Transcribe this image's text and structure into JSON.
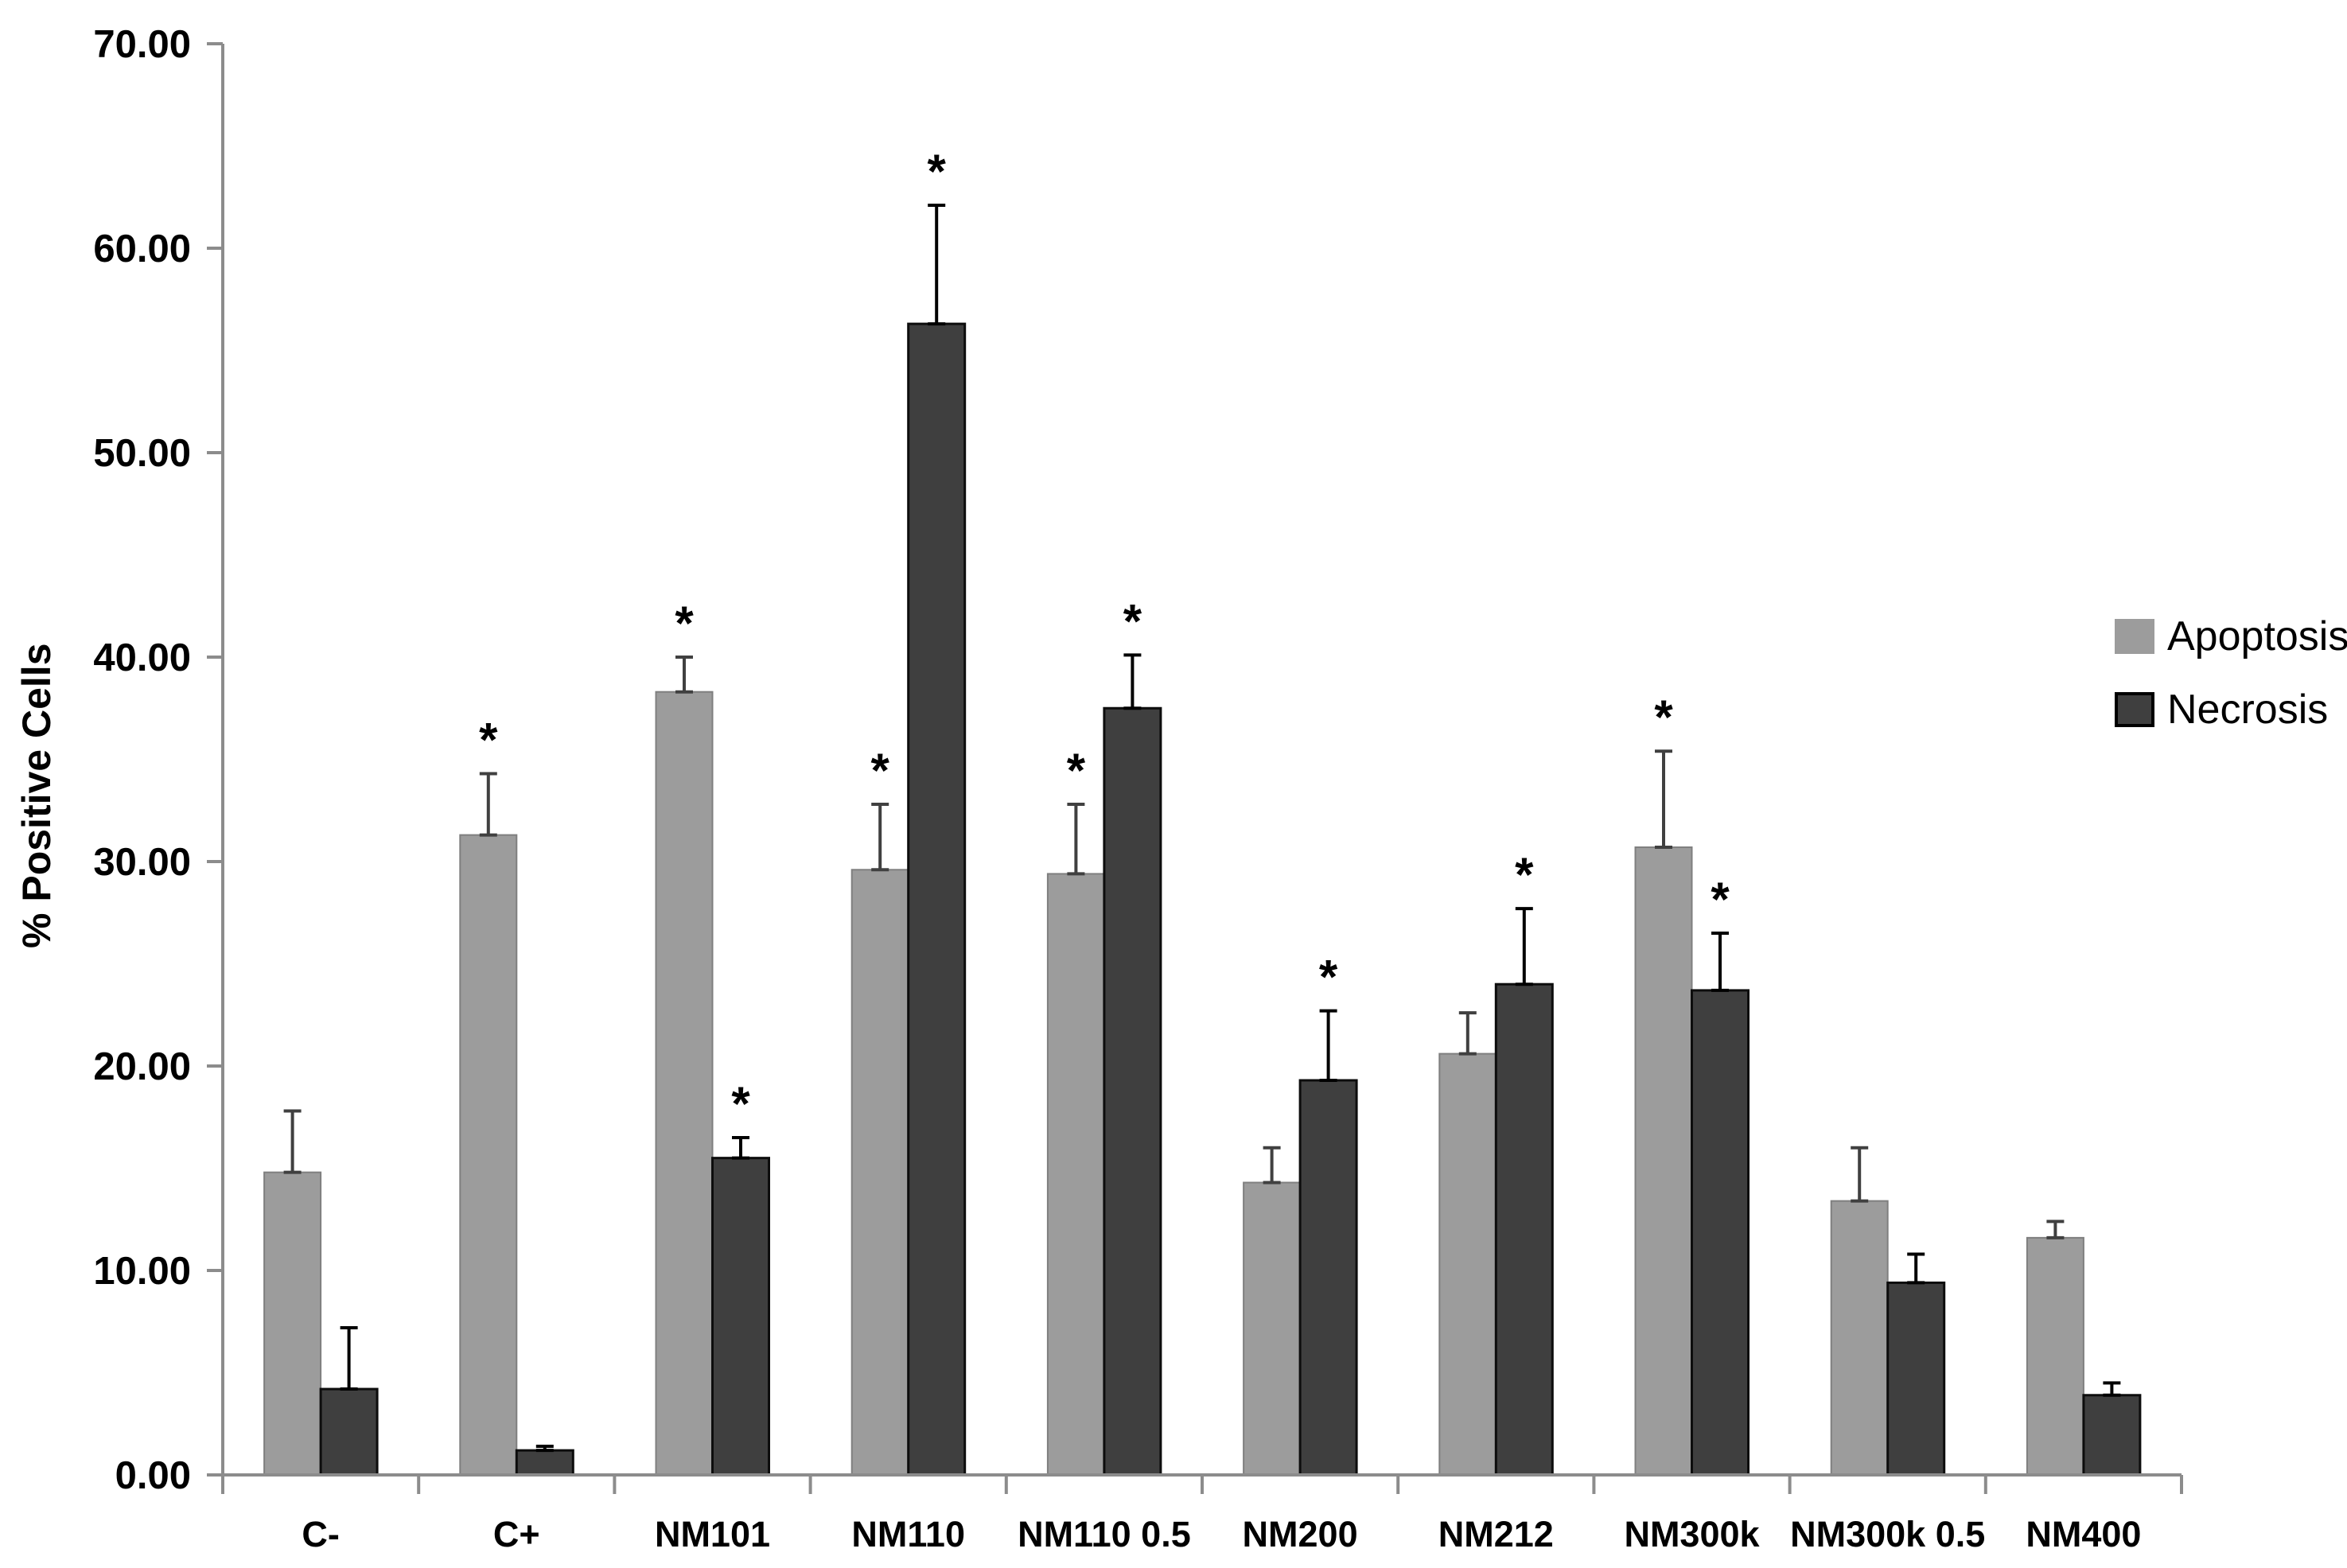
{
  "figure": {
    "background": "#ffffff"
  },
  "chart_data": {
    "type": "bar",
    "title": "",
    "xlabel": "",
    "ylabel": "% Positive Cells",
    "ylim": [
      0,
      70
    ],
    "ytick_step": 10,
    "ytick_labels": [
      "0.00",
      "10.00",
      "20.00",
      "30.00",
      "40.00",
      "50.00",
      "60.00",
      "70.00"
    ],
    "grid": false,
    "legend_position": "right",
    "axis_color": "#8c8c8c",
    "text_color": "#000000",
    "significance_marker": "*",
    "categories": [
      "C-",
      "C+",
      "NM101",
      "NM110",
      "NM110 0.5",
      "NM200",
      "NM212",
      "NM300k",
      "NM300k 0.5",
      "NM400"
    ],
    "series": [
      {
        "name": "Apoptosis",
        "color": "#9c9c9c",
        "border": "#7f7f7f",
        "error_color": "#404040",
        "values": [
          14.8,
          31.3,
          38.3,
          29.6,
          29.4,
          14.3,
          20.6,
          30.7,
          13.4,
          11.6
        ],
        "error_up": [
          3.0,
          3.0,
          1.7,
          3.2,
          3.4,
          1.7,
          2.0,
          4.7,
          2.6,
          0.8
        ],
        "significant": [
          false,
          true,
          true,
          true,
          true,
          false,
          false,
          true,
          false,
          false
        ]
      },
      {
        "name": "Necrosis",
        "color": "#3f3f3f",
        "border": "#0d0d0d",
        "error_color": "#000000",
        "values": [
          4.2,
          1.2,
          15.5,
          56.3,
          37.5,
          19.3,
          24.0,
          23.7,
          9.4,
          3.9
        ],
        "error_up": [
          3.0,
          0.2,
          1.0,
          5.8,
          2.6,
          3.4,
          3.7,
          2.8,
          1.4,
          0.6
        ],
        "significant": [
          false,
          false,
          true,
          true,
          true,
          true,
          true,
          true,
          false,
          false
        ]
      }
    ]
  }
}
